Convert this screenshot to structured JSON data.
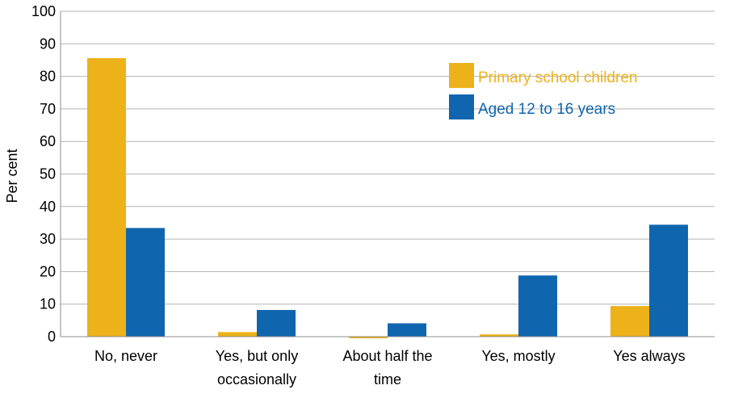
{
  "chart_data": {
    "type": "bar",
    "title": "",
    "xlabel": "",
    "ylabel": "Per cent",
    "ylim": [
      0,
      100
    ],
    "yticks": [
      0,
      10,
      20,
      30,
      40,
      50,
      60,
      70,
      80,
      90,
      100
    ],
    "grid": true,
    "legend_position": "top-right",
    "categories": [
      [
        "No, never"
      ],
      [
        "Yes, but only",
        "occasionally"
      ],
      [
        "About half the",
        "time"
      ],
      [
        "Yes, mostly"
      ],
      [
        "Yes always"
      ]
    ],
    "series": [
      {
        "name": "Primary school children",
        "color": "#EDB21A",
        "values": [
          85.6,
          1.4,
          -0.5,
          0.7,
          9.4
        ]
      },
      {
        "name": "Aged 12 to 16 years",
        "color": "#0F66AE",
        "values": [
          33.4,
          8.2,
          4.1,
          18.8,
          34.4
        ]
      }
    ]
  }
}
